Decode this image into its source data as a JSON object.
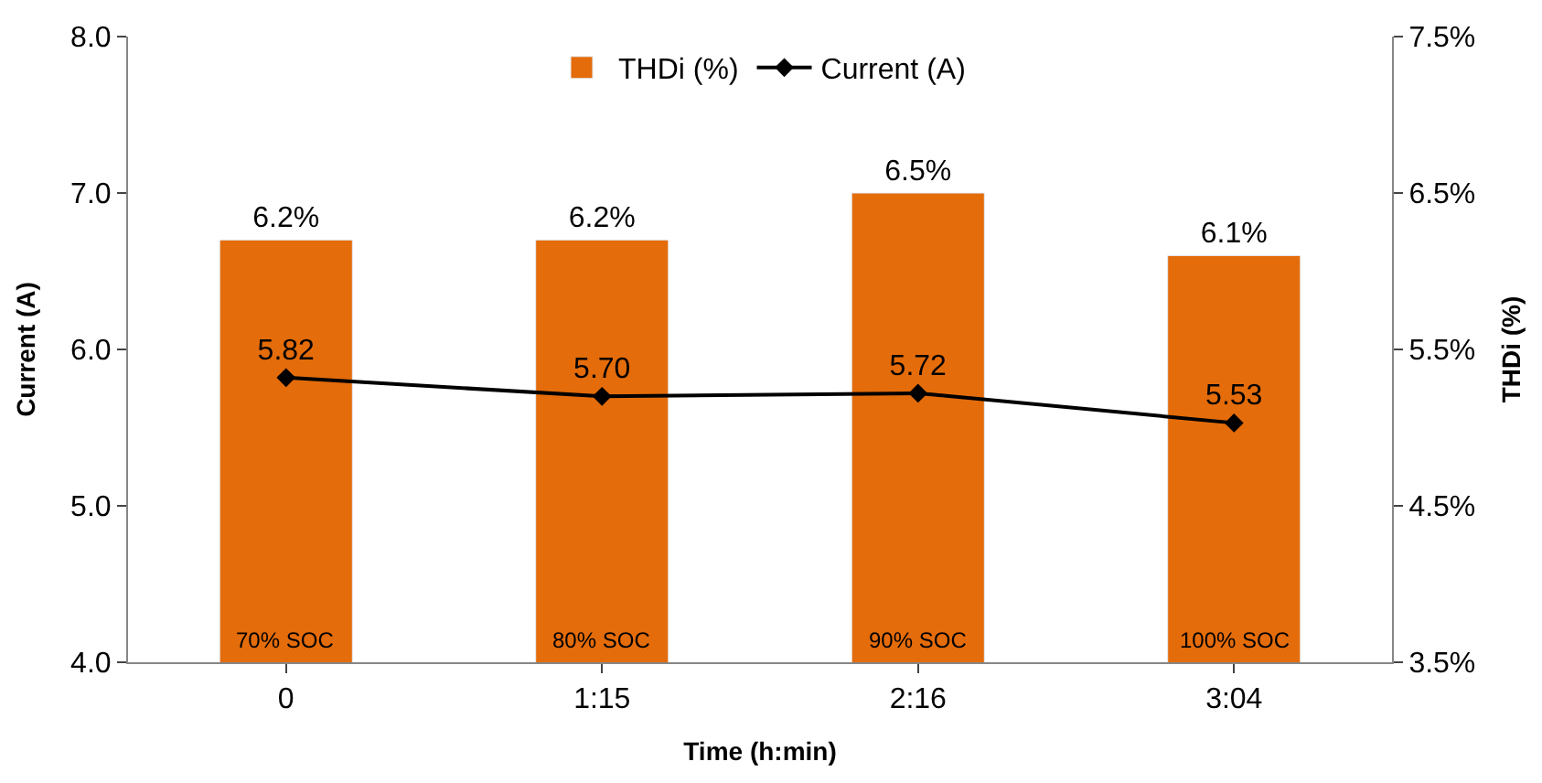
{
  "chart_data": {
    "type": "bar",
    "categories": [
      "0",
      "1:15",
      "2:16",
      "3:04"
    ],
    "xlabel": "Time (h:min)",
    "ylabel": "Current (A)",
    "y2label": "THDi (%)",
    "series": [
      {
        "name": "THDi (%)",
        "axis": "y2",
        "color": "#e46c0a",
        "values": [
          6.2,
          6.2,
          6.5,
          6.1
        ],
        "value_labels": [
          "6.2%",
          "6.2%",
          "6.5%",
          "6.1%"
        ]
      },
      {
        "name": "Current (A)",
        "type": "line",
        "axis": "y",
        "color": "#000000",
        "marker": "diamond",
        "line_style": "solid",
        "values": [
          5.82,
          5.7,
          5.72,
          5.53
        ],
        "value_labels": [
          "5.82",
          "5.70",
          "5.72",
          "5.53"
        ]
      }
    ],
    "ylim": [
      4.0,
      8.0
    ],
    "yticks": [
      {
        "value": 4,
        "label": "4.0"
      },
      {
        "value": 5,
        "label": "5.0"
      },
      {
        "value": 6,
        "label": "6.0"
      },
      {
        "value": 7,
        "label": "7.0"
      },
      {
        "value": 8,
        "label": "8.0"
      }
    ],
    "y2lim": [
      3.5,
      7.5
    ],
    "y2ticks": [
      {
        "value": 3.5,
        "label": "3.5%"
      },
      {
        "value": 4.5,
        "label": "4.5%"
      },
      {
        "value": 5.5,
        "label": "5.5%"
      },
      {
        "value": 6.5,
        "label": "6.5%"
      },
      {
        "value": 7.5,
        "label": "7.5%"
      }
    ],
    "annotations": [
      "70% SOC",
      "80% SOC",
      "90% SOC",
      "100% SOC"
    ],
    "legend": "top"
  }
}
